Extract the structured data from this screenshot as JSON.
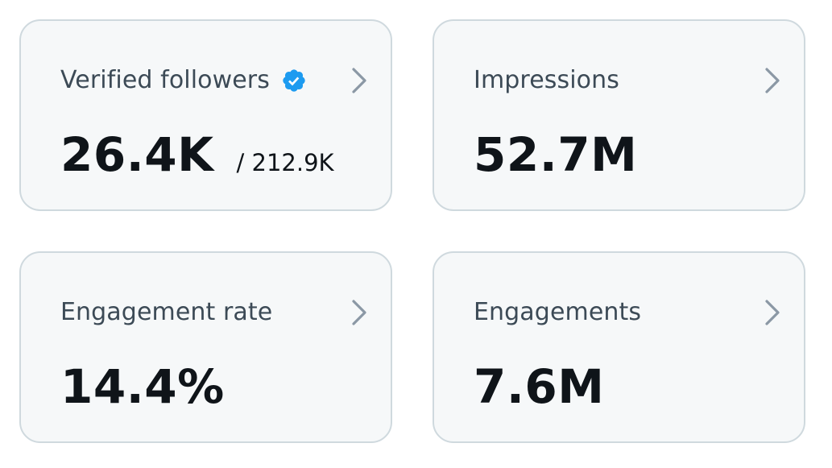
{
  "cards": [
    {
      "label": "Verified followers",
      "value": "26.4K",
      "sub": "/ 212.9K",
      "icon": "verified-badge-icon"
    },
    {
      "label": "Impressions",
      "value": "52.7M"
    },
    {
      "label": "Engagement rate",
      "value": "14.4%"
    },
    {
      "label": "Engagements",
      "value": "7.6M"
    }
  ],
  "colors": {
    "card_bg": "#f6f8f9",
    "card_border": "#cfd9de",
    "label": "#3c4a56",
    "value": "#0f1419",
    "chevron": "#8b98a5",
    "verified": "#1d9bf0"
  }
}
